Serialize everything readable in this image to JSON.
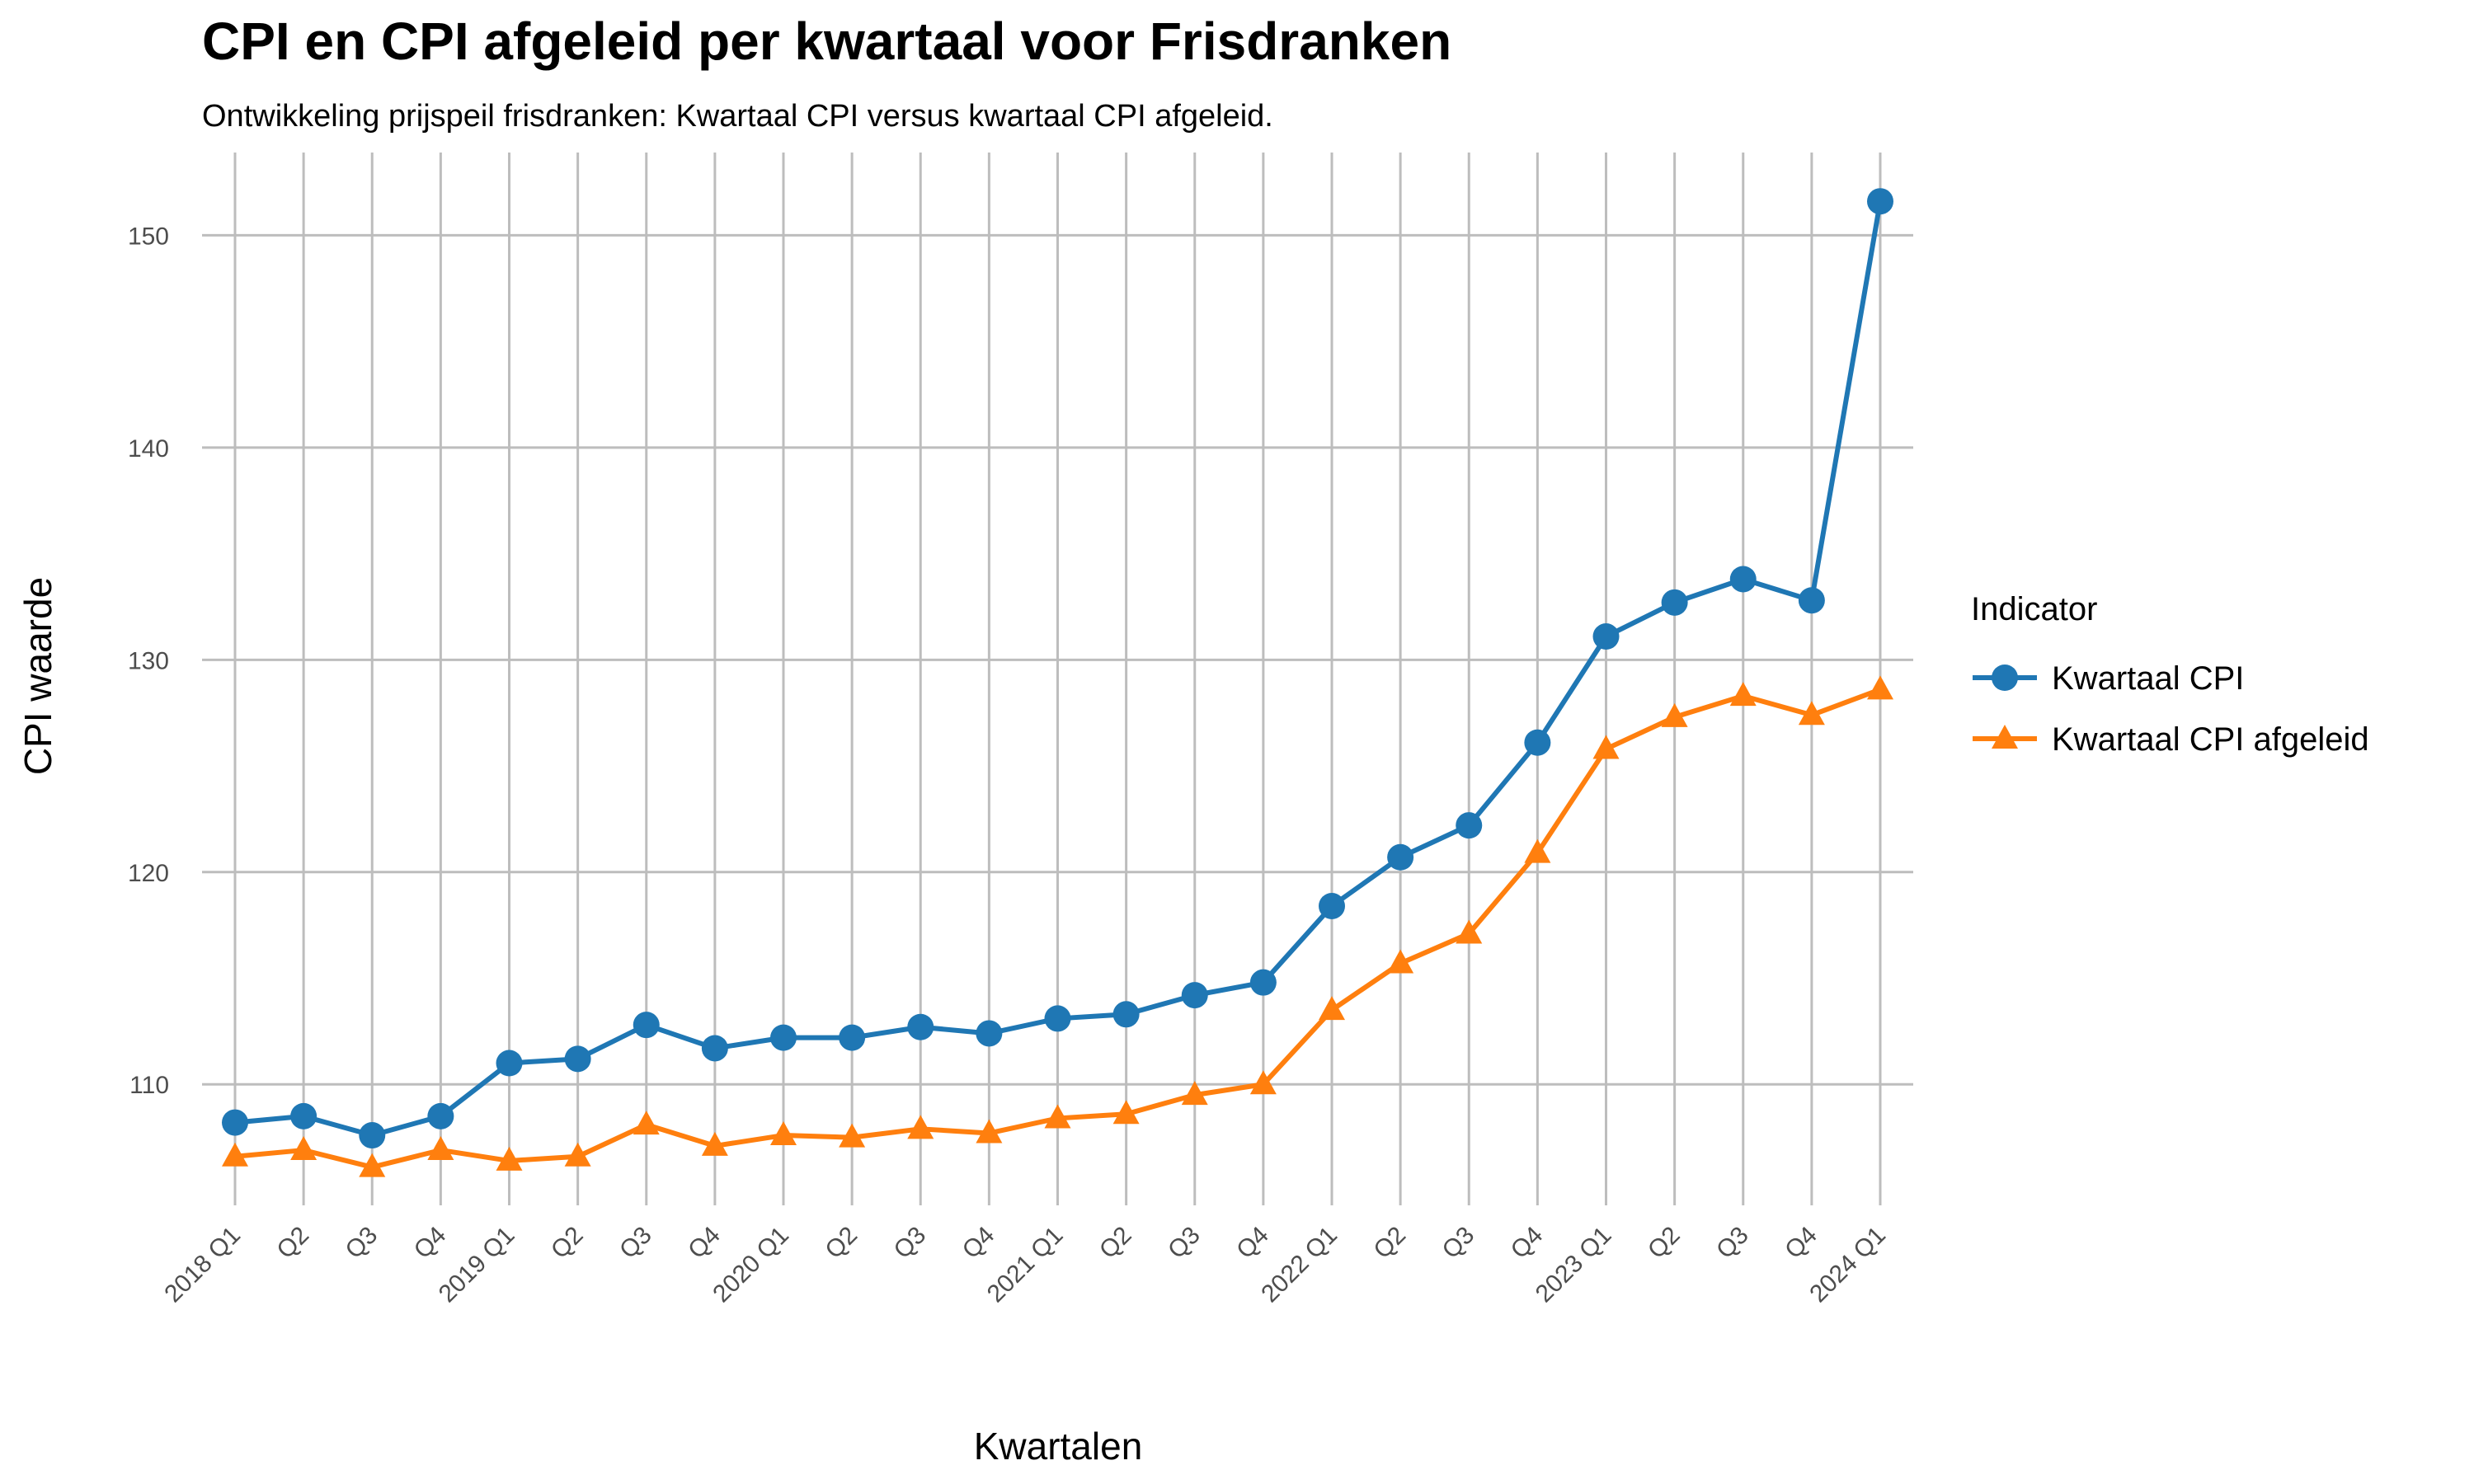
{
  "chart_data": {
    "type": "line",
    "title": "CPI en CPI afgeleid per kwartaal voor Frisdranken",
    "subtitle": "Ontwikkeling prijspeil frisdranken: Kwartaal CPI versus kwartaal CPI afgeleid.",
    "xlabel": "Kwartalen",
    "ylabel": "CPI waarde",
    "categories": [
      "2018 Q1",
      "Q2",
      "Q3",
      "Q4",
      "2019 Q1",
      "Q2",
      "Q3",
      "Q4",
      "2020 Q1",
      "Q2",
      "Q3",
      "Q4",
      "2021 Q1",
      "Q2",
      "Q3",
      "Q4",
      "2022 Q1",
      "Q2",
      "Q3",
      "Q4",
      "2023 Q1",
      "Q2",
      "Q3",
      "Q4",
      "2024 Q1"
    ],
    "ylim": [
      104.3,
      153.9
    ],
    "yticks": [
      110,
      120,
      130,
      140,
      150
    ],
    "grid": true,
    "legend_title": "Indicator",
    "legend_position": "right",
    "series": [
      {
        "name": "Kwartaal CPI",
        "color": "#1F77B4",
        "marker": "circle",
        "values": [
          108.2,
          108.5,
          107.6,
          108.5,
          111.0,
          111.2,
          112.8,
          111.7,
          112.2,
          112.2,
          112.7,
          112.4,
          113.1,
          113.3,
          114.2,
          114.8,
          118.4,
          120.7,
          122.2,
          126.1,
          131.1,
          132.7,
          133.8,
          132.8,
          151.6
        ]
      },
      {
        "name": "Kwartaal CPI afgeleid",
        "color": "#FF7F0E",
        "marker": "triangle",
        "values": [
          106.6,
          106.9,
          106.1,
          106.9,
          106.4,
          106.6,
          108.1,
          107.1,
          107.6,
          107.5,
          107.9,
          107.7,
          108.4,
          108.6,
          109.5,
          110.0,
          113.5,
          115.7,
          117.1,
          120.9,
          125.8,
          127.3,
          128.3,
          127.4,
          128.6
        ]
      }
    ]
  }
}
